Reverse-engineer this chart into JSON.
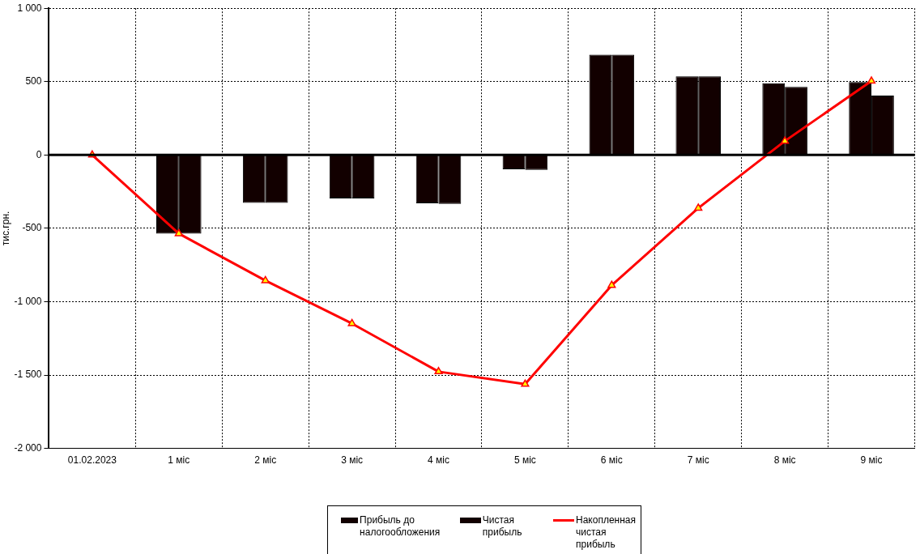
{
  "chart_data": {
    "type": "bar",
    "ylabel": "тис.грн.",
    "categories": [
      "01.02.2023",
      "1 міс",
      "2 міс",
      "3 міс",
      "4 міс",
      "5 міс",
      "6 міс",
      "7 міс",
      "8 міс",
      "9 міс"
    ],
    "series": [
      {
        "name": "Прибыль  до налогообложения",
        "color": "#120000",
        "values": [
          null,
          -536,
          -326,
          -296,
          -330,
          -97,
          684,
          536,
          489,
          498
        ]
      },
      {
        "name": "Чистая прибыль",
        "color": "#120000",
        "values": [
          null,
          -536,
          -326,
          -296,
          -334,
          -102,
          684,
          536,
          464,
          405
        ]
      },
      {
        "name": "Накопленная чистая прибыль",
        "type": "line",
        "color": "#ff0000",
        "marker": "triangle",
        "values": [
          0,
          -536,
          -856,
          -1149,
          -1477,
          -1562,
          -888,
          -362,
          95,
          504
        ]
      }
    ],
    "ylim": [
      -2000,
      1000
    ],
    "yticks": [
      {
        "value": -2000,
        "label": "-2 000"
      },
      {
        "value": -1500,
        "label": "-1 500"
      },
      {
        "value": -1000,
        "label": "-1 000"
      },
      {
        "value": -500,
        "label": "-500"
      },
      0,
      500,
      {
        "value": 1000,
        "label": "1 000"
      }
    ],
    "grid": true,
    "legend": "bottom"
  }
}
